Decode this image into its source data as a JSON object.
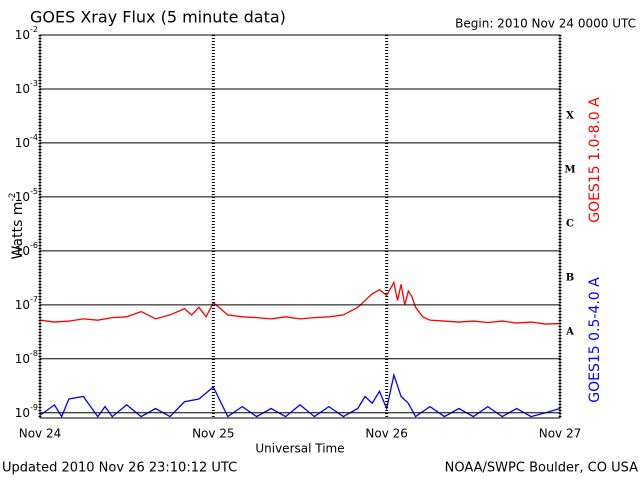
{
  "chart_data": {
    "type": "line",
    "title": "GOES Xray Flux (5 minute data)",
    "subtitle": "Begin:  2010 Nov 24 0000 UTC",
    "xlabel": "Universal Time",
    "ylabel": "Watts m-2",
    "footer_left": "Updated 2010 Nov 26 23:10:12 UTC",
    "footer_right": "NOAA/SWPC Boulder, CO USA",
    "flare_classes": [
      "X",
      "M",
      "C",
      "B",
      "A"
    ],
    "log_y": true,
    "grid": true,
    "xlim": [
      0,
      72
    ],
    "xticks": [
      {
        "value": 0,
        "label": "Nov 24"
      },
      {
        "value": 24,
        "label": "Nov 25"
      },
      {
        "value": 48,
        "label": "Nov 26"
      },
      {
        "value": 72,
        "label": "Nov 27"
      }
    ],
    "ylim": [
      8e-10,
      0.01
    ],
    "yticks": [
      {
        "value": 0.01,
        "label": "10-2"
      },
      {
        "value": 0.001,
        "label": "10-3"
      },
      {
        "value": 0.0001,
        "label": "10-4"
      },
      {
        "value": 1e-05,
        "label": "10-5"
      },
      {
        "value": 1e-06,
        "label": "10-6"
      },
      {
        "value": 1e-07,
        "label": "10-7"
      },
      {
        "value": 1e-08,
        "label": "10-8"
      },
      {
        "value": 1e-09,
        "label": "10-9"
      }
    ],
    "series": [
      {
        "name": "GOES15 1.0-8.0 A",
        "color": "#ff0000",
        "x": [
          0,
          2,
          4,
          6,
          8,
          10,
          12,
          14,
          16,
          18,
          20,
          21,
          22,
          23,
          24,
          26,
          28,
          30,
          32,
          34,
          36,
          38,
          40,
          42,
          44,
          45,
          46,
          47,
          48,
          49,
          49.5,
          50,
          50.5,
          51,
          51.5,
          52,
          53,
          54,
          56,
          58,
          60,
          62,
          64,
          66,
          68,
          70,
          72
        ],
        "values": [
          5.2e-08,
          4.8e-08,
          5e-08,
          5.5e-08,
          5.2e-08,
          5.8e-08,
          6e-08,
          7.5e-08,
          5.5e-08,
          6.5e-08,
          8.5e-08,
          6.5e-08,
          9e-08,
          6e-08,
          1.1e-07,
          6.5e-08,
          6e-08,
          5.8e-08,
          5.5e-08,
          6e-08,
          5.5e-08,
          5.8e-08,
          6e-08,
          6.5e-08,
          9e-08,
          1.2e-07,
          1.6e-07,
          1.9e-07,
          1.5e-07,
          2.6e-07,
          1.2e-07,
          2.4e-07,
          1e-07,
          1.8e-07,
          1.4e-07,
          9e-08,
          6e-08,
          5.2e-08,
          5e-08,
          4.8e-08,
          5e-08,
          4.7e-08,
          5e-08,
          4.6e-08,
          4.8e-08,
          4.4e-08,
          4.5e-08
        ]
      },
      {
        "name": "GOES15 0.5-4.0 A",
        "color": "#0000ff",
        "x": [
          0,
          2,
          3,
          4,
          6,
          8,
          9,
          10,
          12,
          14,
          16,
          18,
          20,
          22,
          24,
          26,
          28,
          30,
          32,
          34,
          36,
          38,
          40,
          42,
          44,
          45,
          46,
          47,
          48,
          49,
          50,
          51,
          52,
          54,
          56,
          58,
          60,
          62,
          64,
          66,
          68,
          70,
          72
        ],
        "values": [
          9e-10,
          1.4e-09,
          8.5e-10,
          1.8e-09,
          2e-09,
          8.5e-10,
          1.3e-09,
          8.5e-10,
          1.4e-09,
          8.5e-10,
          1.2e-09,
          8.5e-10,
          1.6e-09,
          1.8e-09,
          3e-09,
          8.5e-10,
          1.3e-09,
          8.5e-10,
          1.2e-09,
          8.5e-10,
          1.4e-09,
          8.5e-10,
          1.3e-09,
          8.5e-10,
          1.2e-09,
          2e-09,
          1.5e-09,
          2.5e-09,
          1.2e-09,
          5e-09,
          2e-09,
          1.5e-09,
          8.5e-10,
          1.3e-09,
          8.5e-10,
          1.2e-09,
          8.5e-10,
          1.3e-09,
          8.5e-10,
          1.2e-09,
          8.5e-10,
          1e-09,
          1.2e-09
        ]
      }
    ]
  }
}
